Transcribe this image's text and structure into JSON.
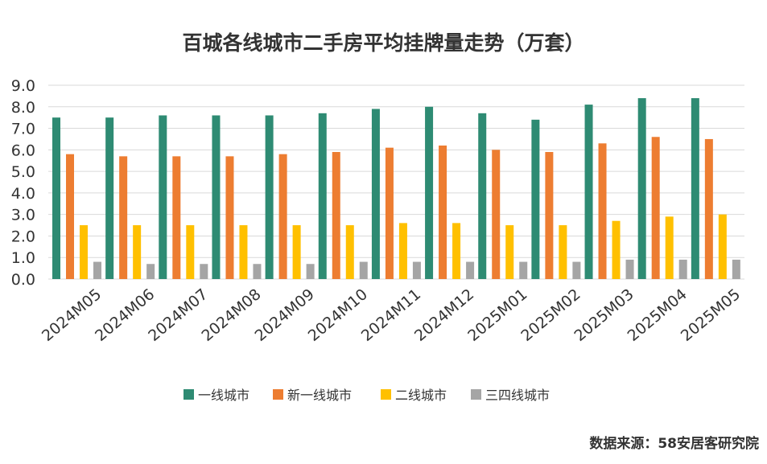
{
  "colors": {
    "tier1": "#2e8b73",
    "newtier1": "#ed7d31",
    "tier2": "#ffc000",
    "tier34": "#a5a5a5",
    "grid": "#d9d9d9",
    "text": "#333333"
  },
  "chart_data": {
    "type": "bar",
    "title": "百城各线城市二手房平均挂牌量走势（万套）",
    "categories": [
      "2024M05",
      "2024M06",
      "2024M07",
      "2024M08",
      "2024M09",
      "2024M10",
      "2024M11",
      "2024M12",
      "2025M01",
      "2025M02",
      "2025M03",
      "2025M04",
      "2025M05"
    ],
    "ylim": [
      0,
      9
    ],
    "yticks": [
      "0.0",
      "1.0",
      "2.0",
      "3.0",
      "4.0",
      "5.0",
      "6.0",
      "7.0",
      "8.0",
      "9.0"
    ],
    "grid": true,
    "legend_position": "bottom",
    "series": [
      {
        "name": "一线城市",
        "color_key": "tier1",
        "values": [
          7.5,
          7.5,
          7.6,
          7.6,
          7.6,
          7.7,
          7.9,
          8.0,
          7.7,
          7.4,
          8.1,
          8.4,
          8.4
        ]
      },
      {
        "name": "新一线城市",
        "color_key": "newtier1",
        "values": [
          5.8,
          5.7,
          5.7,
          5.7,
          5.8,
          5.9,
          6.1,
          6.2,
          6.0,
          5.9,
          6.3,
          6.6,
          6.5
        ]
      },
      {
        "name": "二线城市",
        "color_key": "tier2",
        "values": [
          2.5,
          2.5,
          2.5,
          2.5,
          2.5,
          2.5,
          2.6,
          2.6,
          2.5,
          2.5,
          2.7,
          2.9,
          3.0
        ]
      },
      {
        "name": "三四线城市",
        "color_key": "tier34",
        "values": [
          0.8,
          0.7,
          0.7,
          0.7,
          0.7,
          0.8,
          0.8,
          0.8,
          0.8,
          0.8,
          0.9,
          0.9,
          0.9
        ]
      }
    ]
  },
  "source_text": "数据来源：58安居客研究院"
}
